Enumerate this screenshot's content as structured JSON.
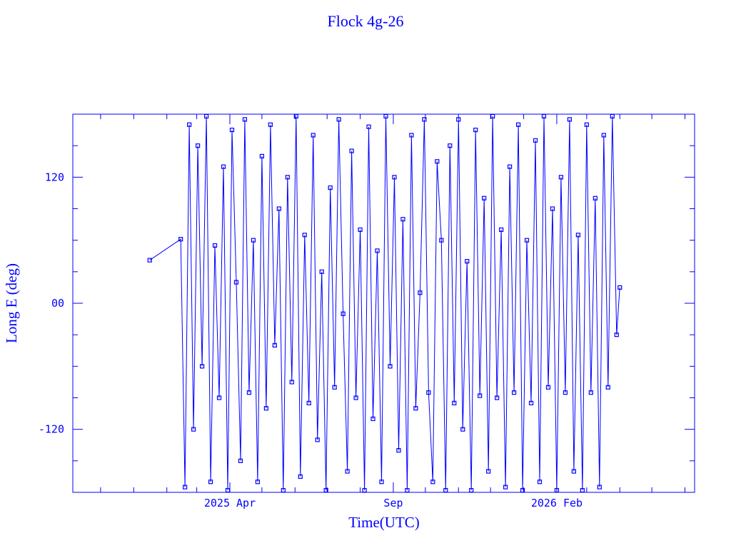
{
  "chart_data": {
    "type": "line",
    "title": "Flock 4g-26",
    "xlabel": "Time(UTC)",
    "ylabel": "Long E (deg)",
    "xlim": [
      "2024-11-05",
      "2026-06-10"
    ],
    "ylim": [
      -180,
      180
    ],
    "x_tick_labels": [
      {
        "date": "2025-04-01",
        "label": "2025 Apr"
      },
      {
        "date": "2025-09-01",
        "label": "Sep"
      },
      {
        "date": "2026-02-01",
        "label": "2026 Feb"
      }
    ],
    "y_tick_labels": [
      {
        "value": 120,
        "label": "120"
      },
      {
        "value": 0,
        "label": "00"
      },
      {
        "value": -120,
        "label": "-120"
      }
    ],
    "y_minor_step": 30,
    "grid": false,
    "marker": "square",
    "color": "#0000ff",
    "series": [
      {
        "x": [
          "2025-01-16",
          "2025-02-14",
          "2025-02-18",
          "2025-02-22",
          "2025-02-26",
          "2025-03-02",
          "2025-03-06",
          "2025-03-10",
          "2025-03-14",
          "2025-03-18",
          "2025-03-22",
          "2025-03-26",
          "2025-03-30",
          "2025-04-03",
          "2025-04-07",
          "2025-04-11",
          "2025-04-15",
          "2025-04-19",
          "2025-04-23",
          "2025-04-27",
          "2025-05-01",
          "2025-05-05",
          "2025-05-09",
          "2025-05-13",
          "2025-05-17",
          "2025-05-21",
          "2025-05-25",
          "2025-05-29",
          "2025-06-02",
          "2025-06-06",
          "2025-06-10",
          "2025-06-14",
          "2025-06-18",
          "2025-06-22",
          "2025-06-26",
          "2025-06-30",
          "2025-07-04",
          "2025-07-08",
          "2025-07-12",
          "2025-07-16",
          "2025-07-20",
          "2025-07-24",
          "2025-07-28",
          "2025-08-01",
          "2025-08-05",
          "2025-08-09",
          "2025-08-13",
          "2025-08-17",
          "2025-08-21",
          "2025-08-25",
          "2025-08-29",
          "2025-09-02",
          "2025-09-06",
          "2025-09-10",
          "2025-09-14",
          "2025-09-18",
          "2025-09-22",
          "2025-09-26",
          "2025-09-30",
          "2025-10-04",
          "2025-10-08",
          "2025-10-12",
          "2025-10-16",
          "2025-10-20",
          "2025-10-24",
          "2025-10-28",
          "2025-11-01",
          "2025-11-05",
          "2025-11-09",
          "2025-11-13",
          "2025-11-17",
          "2025-11-21",
          "2025-11-25",
          "2025-11-29",
          "2025-12-03",
          "2025-12-07",
          "2025-12-11",
          "2025-12-15",
          "2025-12-19",
          "2025-12-23",
          "2025-12-27",
          "2025-12-31",
          "2026-01-04",
          "2026-01-08",
          "2026-01-12",
          "2026-01-16",
          "2026-01-20",
          "2026-01-24",
          "2026-01-28",
          "2026-02-01",
          "2026-02-05",
          "2026-02-09",
          "2026-02-13",
          "2026-02-17",
          "2026-02-21",
          "2026-02-25",
          "2026-03-01",
          "2026-03-05",
          "2026-03-09",
          "2026-03-13",
          "2026-03-17",
          "2026-03-21",
          "2026-03-25",
          "2026-03-29",
          "2026-04-01"
        ],
        "y": [
          41,
          61,
          -175,
          170,
          -120,
          150,
          -60,
          178,
          -170,
          55,
          -90,
          130,
          -178,
          165,
          20,
          -150,
          175,
          -85,
          60,
          -170,
          140,
          -100,
          170,
          -40,
          90,
          -178,
          120,
          -75,
          178,
          -165,
          65,
          -95,
          160,
          -130,
          30,
          -178,
          110,
          -80,
          175,
          -10,
          -160,
          145,
          -90,
          70,
          -178,
          168,
          -110,
          50,
          -170,
          178,
          -60,
          120,
          -140,
          80,
          -178,
          160,
          -100,
          10,
          175,
          -85,
          -170,
          135,
          60,
          -178,
          150,
          -95,
          175,
          -120,
          40,
          -178,
          165,
          -88,
          100,
          -160,
          178,
          -90,
          70,
          -175,
          130,
          -85,
          170,
          -178,
          60,
          -95,
          155,
          -170,
          178,
          -80,
          90,
          -178,
          120,
          -85,
          175,
          -160,
          65,
          -178,
          170,
          -85,
          100,
          -175,
          160,
          -80,
          178,
          -30,
          15
        ]
      }
    ]
  }
}
